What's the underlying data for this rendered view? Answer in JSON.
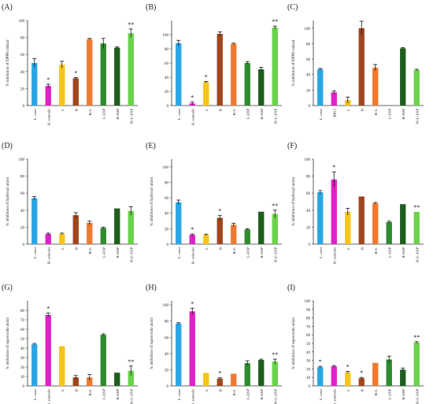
{
  "colors": {
    "lcasei": "#2aa6e8",
    "banimalis": "#e020c8",
    "lactulose": "#f5c518",
    "b_brown": "#a0461e",
    "bl_orange": "#ee7a30",
    "lesp_green": "#2e8b2e",
    "besp_dark": "#1f5e1f",
    "blesp_light": "#6bd24b"
  },
  "chart_data": [
    {
      "panel": "(A)",
      "type": "bar",
      "ylabel": "% inhibition of DPPH radical",
      "ylim": [
        0,
        100
      ],
      "yticks": [
        0,
        20,
        40,
        60,
        80,
        100
      ],
      "categories": [
        "L. casei",
        "B. animalis",
        "L",
        "B",
        "B+L",
        "L+ESP",
        "B+ESP",
        "B+L+ESP"
      ],
      "values": [
        50,
        23,
        48,
        32,
        78,
        73,
        68,
        85
      ],
      "errors": [
        5,
        2,
        4,
        1,
        1,
        6,
        1,
        5
      ],
      "marks": [
        "",
        "*",
        "",
        "*",
        "",
        "",
        "",
        "**"
      ]
    },
    {
      "panel": "(B)",
      "type": "bar",
      "ylabel": "",
      "ylim": [
        0,
        120
      ],
      "yticks": [
        0,
        20,
        40,
        60,
        80,
        100
      ],
      "categories": [
        "L. casei",
        "B. animalis",
        "L",
        "B",
        "B+L",
        "L+ESP",
        "B+ESP",
        "B+L+ESP"
      ],
      "values": [
        88,
        3,
        33,
        101,
        87,
        60,
        51,
        110
      ],
      "errors": [
        4,
        2,
        1,
        3,
        1,
        2,
        3,
        2
      ],
      "marks": [
        "",
        "*",
        "*",
        "",
        "",
        "",
        "",
        "**"
      ]
    },
    {
      "panel": "(C)",
      "type": "bar",
      "ylabel": "% inhibition of DPPH radical",
      "ylim": [
        0,
        110
      ],
      "yticks": [
        0,
        20,
        40,
        60,
        80,
        100
      ],
      "categories": [
        "L. casei",
        "BB12",
        "L",
        "B",
        "B+L",
        "L+ESP",
        "B+ESP",
        "B+L+ESP"
      ],
      "values": [
        47,
        17,
        7,
        100,
        49,
        0,
        74,
        46
      ],
      "errors": [
        1,
        2,
        4,
        9,
        4,
        0,
        1,
        1
      ],
      "marks": [
        "",
        "",
        "",
        "",
        "",
        "",
        "",
        ""
      ]
    },
    {
      "panel": "(D)",
      "type": "bar",
      "ylabel": "% inhibition of hydroxyl anion",
      "ylim": [
        0,
        100
      ],
      "yticks": [
        0,
        20,
        40,
        60,
        80,
        100
      ],
      "categories": [
        "L. casei",
        "B. animalis",
        "L",
        "B",
        "B+L",
        "L+ESP",
        "B+ESP",
        "B+L+ESP"
      ],
      "values": [
        54,
        12,
        12,
        34,
        25,
        19,
        42,
        39
      ],
      "errors": [
        2,
        1,
        1,
        3,
        2,
        1,
        0,
        5
      ],
      "marks": [
        "",
        "",
        "",
        "",
        "",
        "",
        "",
        ""
      ]
    },
    {
      "panel": "(E)",
      "type": "bar",
      "ylabel": "% inhibition of hydroxyl anion",
      "ylim": [
        0,
        110
      ],
      "yticks": [
        0,
        20,
        40,
        60,
        80,
        100
      ],
      "categories": [
        "L. casei",
        "B. animalis",
        "L",
        "B",
        "B+L",
        "L+ESP",
        "B+ESP",
        "B+L+ESP"
      ],
      "values": [
        54,
        12,
        12,
        34,
        25,
        19,
        42,
        39
      ],
      "errors": [
        3,
        1,
        1,
        3,
        2,
        1,
        0,
        5
      ],
      "marks": [
        "",
        "*",
        "",
        "*",
        "",
        "",
        "",
        "**"
      ]
    },
    {
      "panel": "(F)",
      "type": "bar",
      "ylabel": "% inhibition of hydroxyl anion",
      "ylim": [
        0,
        100
      ],
      "yticks": [
        0,
        20,
        40,
        60,
        80,
        100
      ],
      "categories": [
        "L. casei",
        "B. animalis",
        "L",
        "B",
        "B+L",
        "L+ESP",
        "B+ESP",
        "B+L+ESP"
      ],
      "values": [
        61,
        76,
        38,
        56,
        48,
        26,
        47,
        38
      ],
      "errors": [
        2,
        9,
        4,
        0,
        1,
        1,
        0,
        0
      ],
      "marks": [
        "",
        "*",
        "",
        "",
        "",
        "",
        "",
        "**"
      ]
    },
    {
      "panel": "(G)",
      "type": "bar",
      "ylabel": "% inhibition of superoxide anion",
      "ylim": [
        0,
        90
      ],
      "yticks": [
        0,
        10,
        20,
        30,
        40,
        50,
        60,
        70,
        80
      ],
      "categories": [
        "L. casei",
        "B. animalis",
        "L",
        "B",
        "B+L",
        "L+ESP",
        "B+ESP",
        "B+L+ESP"
      ],
      "values": [
        44,
        75,
        42,
        9,
        9,
        54,
        14,
        16
      ],
      "errors": [
        1,
        2,
        0,
        2,
        3,
        1,
        0,
        5
      ],
      "marks": [
        "",
        "*",
        "",
        "",
        "",
        "",
        "",
        "**"
      ]
    },
    {
      "panel": "(H)",
      "type": "bar",
      "ylabel": "% inhibition of superoxide anion",
      "ylim": [
        0,
        105
      ],
      "yticks": [
        0,
        20,
        40,
        60,
        80,
        100
      ],
      "categories": [
        "L. casei",
        "B. animalis",
        "L",
        "B",
        "B+L",
        "L+ESP",
        "B+ESP",
        "B+L+ESP"
      ],
      "values": [
        77,
        92,
        16,
        9,
        15,
        28,
        32,
        30
      ],
      "errors": [
        1,
        4,
        0,
        1,
        0,
        3,
        1,
        3
      ],
      "marks": [
        "",
        "*",
        "",
        "*",
        "",
        "",
        "",
        "**"
      ]
    },
    {
      "panel": "(I)",
      "type": "bar",
      "ylabel": "% inhibition of superoxide anion",
      "ylim": [
        0,
        100
      ],
      "yticks": [
        0,
        10,
        20,
        30,
        40,
        50,
        60,
        70,
        80,
        90,
        100
      ],
      "categories": [
        "L. casei",
        "B. animalis",
        "L",
        "B",
        "B+L",
        "L+ESP",
        "B+ESP",
        "B+L+ESP"
      ],
      "values": [
        22,
        23,
        16,
        9,
        27,
        31,
        19,
        51
      ],
      "errors": [
        1,
        1,
        1,
        1,
        0,
        4,
        2,
        1
      ],
      "marks": [
        "*",
        "",
        "*",
        "*",
        "",
        "",
        "",
        "**"
      ]
    }
  ]
}
